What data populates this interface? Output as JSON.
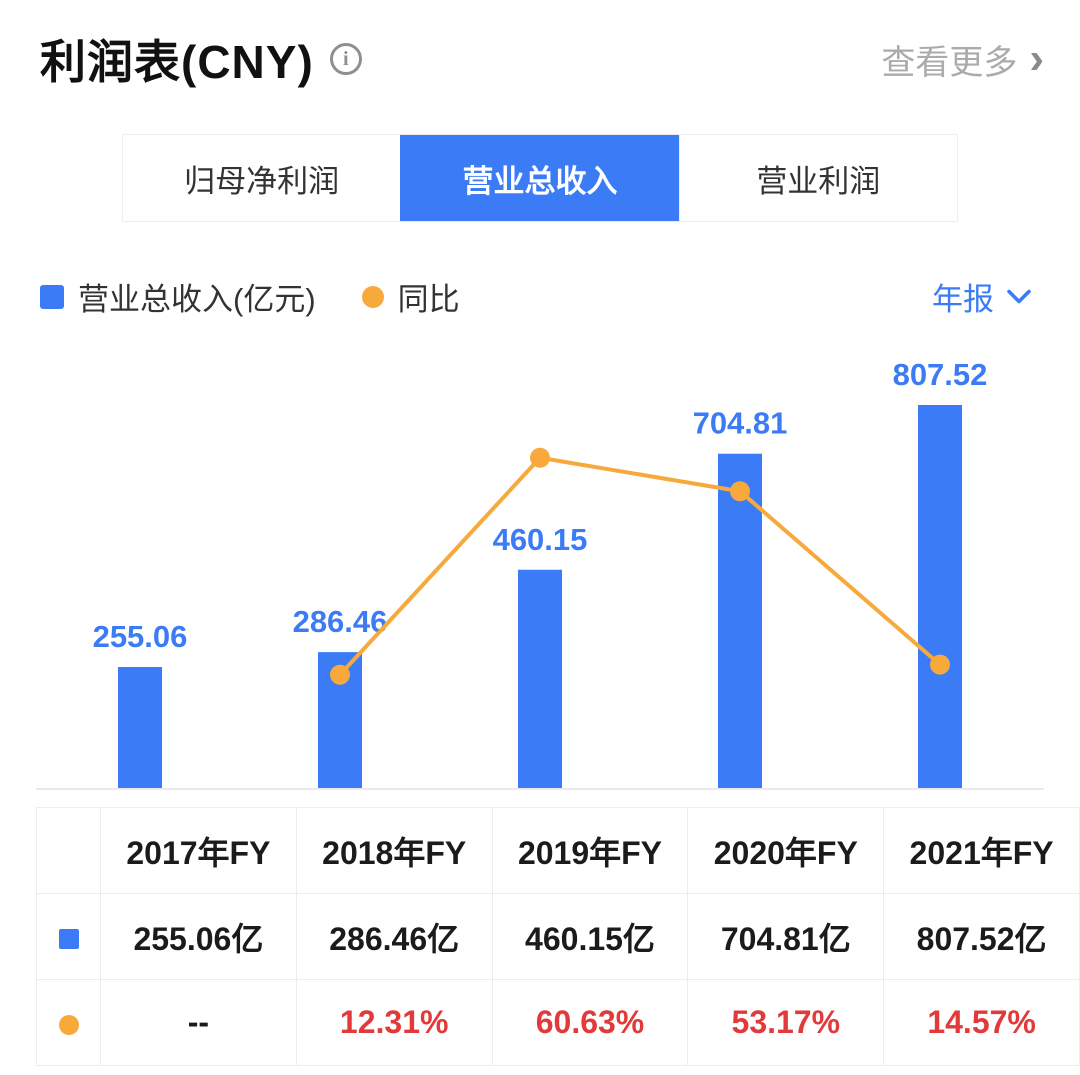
{
  "header": {
    "title": "利润表(CNY)",
    "info_glyph": "i",
    "more_label": "查看更多",
    "more_chevron": "›"
  },
  "tabs": [
    {
      "id": "parent-net-profit",
      "label": "归母净利润",
      "active": false
    },
    {
      "id": "total-revenue",
      "label": "营业总收入",
      "active": true
    },
    {
      "id": "operating-profit",
      "label": "营业利润",
      "active": false
    }
  ],
  "legend": {
    "bar_label": "营业总收入(亿元)",
    "line_label": "同比",
    "period_label": "年报"
  },
  "colors": {
    "blue": "#3B7BF6",
    "orange": "#F7A93C",
    "red": "#E23A3A"
  },
  "chart_data": {
    "type": "bar+line",
    "title": "营业总收入",
    "categories": [
      "2017年FY",
      "2018年FY",
      "2019年FY",
      "2020年FY",
      "2021年FY"
    ],
    "series": [
      {
        "name": "营业总收入(亿元)",
        "type": "bar",
        "unit": "亿元",
        "color": "#3B7BF6",
        "values": [
          255.06,
          286.46,
          460.15,
          704.81,
          807.52
        ]
      },
      {
        "name": "同比",
        "type": "line",
        "unit": "%",
        "color": "#F7A93C",
        "values": [
          null,
          12.31,
          60.63,
          53.17,
          14.57
        ]
      }
    ],
    "bar_value_labels": [
      "255.06",
      "286.46",
      "460.15",
      "704.81",
      "807.52"
    ],
    "ylim_bar": [
      0,
      850
    ],
    "ylim_pct": [
      0,
      90
    ],
    "grid": false,
    "legend_position": "top-left"
  },
  "table": {
    "columns": [
      "2017年FY",
      "2018年FY",
      "2019年FY",
      "2020年FY",
      "2021年FY"
    ],
    "rows": [
      {
        "series": "营业总收入",
        "accent": false,
        "values": [
          "255.06亿",
          "286.46亿",
          "460.15亿",
          "704.81亿",
          "807.52亿"
        ]
      },
      {
        "series": "同比",
        "accent": true,
        "values": [
          "--",
          "12.31%",
          "60.63%",
          "53.17%",
          "14.57%"
        ]
      }
    ]
  }
}
